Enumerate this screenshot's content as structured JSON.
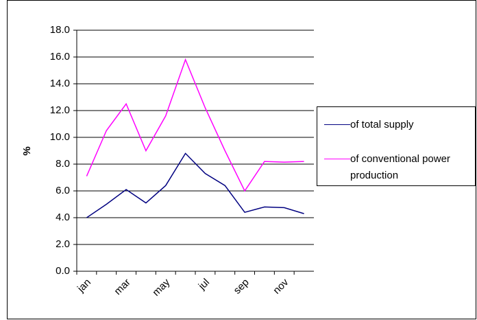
{
  "chart_data": {
    "type": "line",
    "y_label": "%",
    "categories": [
      "jan",
      null,
      "mar",
      null,
      "may",
      null,
      "jul",
      null,
      "sep",
      null,
      "nov",
      null
    ],
    "series": [
      {
        "name": "of total supply",
        "color": "#000080",
        "values": [
          4.0,
          5.0,
          6.1,
          5.1,
          6.4,
          8.8,
          7.3,
          6.4,
          4.4,
          4.8,
          4.75,
          4.3
        ]
      },
      {
        "name": "of conventional power production",
        "color": "#ff00ff",
        "values": [
          7.1,
          10.5,
          12.5,
          9.0,
          11.6,
          15.8,
          12.2,
          9.0,
          6.0,
          8.2,
          8.15,
          8.2
        ]
      }
    ],
    "ylim": [
      0,
      18
    ],
    "yticks": [
      {
        "value": 0,
        "label": "0.0"
      },
      {
        "value": 2,
        "label": "2.0"
      },
      {
        "value": 4,
        "label": "4.0"
      },
      {
        "value": 6,
        "label": "6.0"
      },
      {
        "value": 8,
        "label": "8.0"
      },
      {
        "value": 10,
        "label": "10.0"
      },
      {
        "value": 12,
        "label": "12.0"
      },
      {
        "value": 14,
        "label": "14.0"
      },
      {
        "value": 16,
        "label": "16.0"
      },
      {
        "value": 18,
        "label": "18.0"
      }
    ],
    "grid": true
  }
}
